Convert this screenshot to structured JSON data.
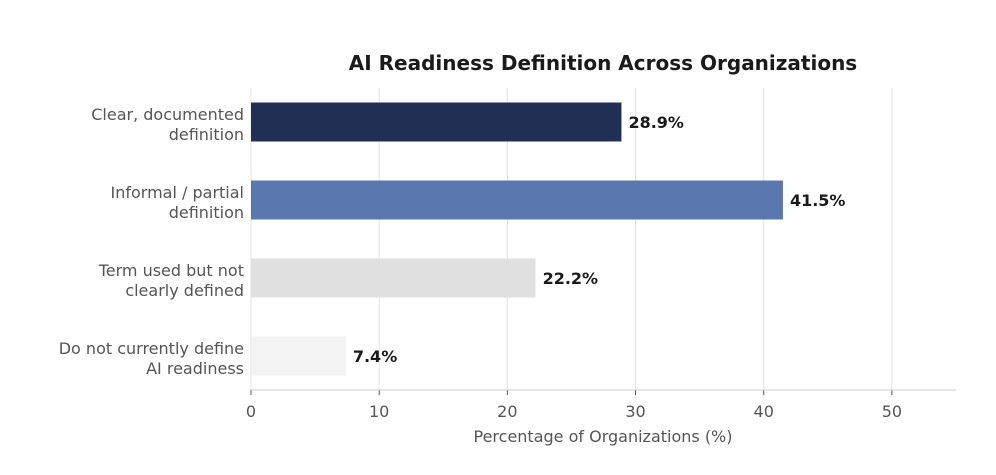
{
  "chart_data": {
    "type": "bar",
    "orientation": "horizontal",
    "title": "AI Readiness Definition Across Organizations",
    "xlabel": "Percentage of Organizations (%)",
    "ylabel": "",
    "xlim": [
      0,
      55
    ],
    "xticks": [
      0,
      10,
      20,
      30,
      40,
      50
    ],
    "xtick_labels": [
      "0",
      "10",
      "20",
      "30",
      "40",
      "50"
    ],
    "grid": "vertical",
    "categories": [
      [
        "Clear, documented",
        "definition"
      ],
      [
        "Informal / partial",
        "definition"
      ],
      [
        "Term used but not",
        "clearly defined"
      ],
      [
        "Do not currently define",
        "AI readiness"
      ]
    ],
    "values": [
      28.9,
      41.5,
      22.2,
      7.4
    ],
    "value_labels": [
      "28.9%",
      "41.5%",
      "22.2%",
      "7.4%"
    ],
    "colors": [
      "#212f55",
      "#5b77b0",
      "#e0e0e0",
      "#f3f3f3"
    ]
  }
}
